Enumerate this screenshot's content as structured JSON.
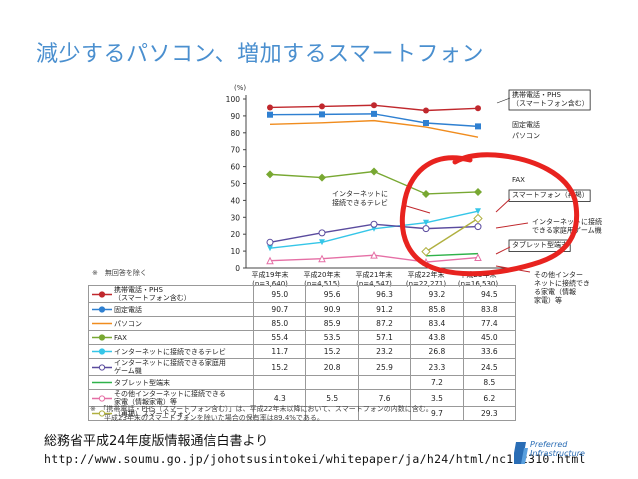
{
  "slide": {
    "title": "減少するパソコン、増加するスマートフォン",
    "source_text": "総務省平成24年度版情報通信白書より",
    "url": "http://www.soumu.go.jp/johotsusintokei/whitepaper/ja/h24/html/nc122310.html",
    "logo_text_1": "Preferred",
    "logo_text_2": "Infrastructure",
    "brand_color": "#4a8fcf",
    "annotation_color": "#e8231f"
  },
  "chart_data": {
    "type": "line",
    "unit_label": "(%)",
    "ylim": [
      0,
      100
    ],
    "yticks": [
      0,
      10,
      20,
      30,
      40,
      50,
      60,
      70,
      80,
      90,
      100
    ],
    "categories": [
      "平成19年末",
      "平成20年末",
      "平成21年末",
      "平成22年末",
      "平成23年末"
    ],
    "category_n": [
      "(n=3,640)",
      "(n=4,515)",
      "(n=4,547)",
      "(n=22,271)",
      "(n=16,530)"
    ],
    "note_left": "※　無回答を除く",
    "series": [
      {
        "name": "携帯電話・PHS（スマートフォン含む）",
        "label_lines": [
          "携帯電話・PHS",
          "（スマートフォン含む）"
        ],
        "color": "#c0282d",
        "marker": "circle",
        "values": [
          95.0,
          95.6,
          96.3,
          93.2,
          94.5
        ]
      },
      {
        "name": "固定電話",
        "label_lines": [
          "固定電話"
        ],
        "color": "#2f80d1",
        "marker": "square",
        "values": [
          90.7,
          90.9,
          91.2,
          85.8,
          83.8
        ]
      },
      {
        "name": "パソコン",
        "label_lines": [
          "パソコン"
        ],
        "color": "#f08c1e",
        "marker": "none",
        "values": [
          85.0,
          85.9,
          87.2,
          83.4,
          77.4
        ]
      },
      {
        "name": "FAX",
        "label_lines": [
          "FAX"
        ],
        "color": "#78a832",
        "marker": "diamond",
        "values": [
          55.4,
          53.5,
          57.1,
          43.8,
          45.0
        ]
      },
      {
        "name": "インターネットに接続できるテレビ",
        "label_lines": [
          "インターネットに接続できるテレビ"
        ],
        "color": "#35c6e8",
        "marker": "triangle-down",
        "values": [
          11.7,
          15.2,
          23.2,
          26.8,
          33.6
        ]
      },
      {
        "name": "インターネットに接続できる家庭用ゲーム機",
        "label_lines": [
          "インターネットに接続できる家庭用",
          "ゲーム機"
        ],
        "color": "#5a4b9e",
        "marker": "circle-open",
        "values": [
          15.2,
          20.8,
          25.9,
          23.3,
          24.5
        ]
      },
      {
        "name": "タブレット型端末",
        "label_lines": [
          "タブレット型端末"
        ],
        "color": "#2fb24a",
        "marker": "none",
        "values": [
          null,
          null,
          null,
          7.2,
          8.5
        ]
      },
      {
        "name": "その他インターネットに接続できる家電（情報家電）等",
        "label_lines": [
          "その他インターネットに接続できる",
          "家電（情報家電）等"
        ],
        "color": "#e56fa5",
        "marker": "triangle-open",
        "values": [
          4.3,
          5.5,
          7.6,
          3.5,
          6.2
        ]
      },
      {
        "name": "（再掲）スマートフォン",
        "label_lines": [
          "（再掲）スマートフォン"
        ],
        "color": "#b0b040",
        "marker": "diamond-open",
        "values": [
          null,
          null,
          null,
          9.7,
          29.3
        ]
      }
    ],
    "table_values": [
      [
        "95.0",
        "95.6",
        "96.3",
        "93.2",
        "94.5"
      ],
      [
        "90.7",
        "90.9",
        "91.2",
        "85.8",
        "83.8"
      ],
      [
        "85.0",
        "85.9",
        "87.2",
        "83.4",
        "77.4"
      ],
      [
        "55.4",
        "53.5",
        "57.1",
        "43.8",
        "45.0"
      ],
      [
        "11.7",
        "15.2",
        "23.2",
        "26.8",
        "33.6"
      ],
      [
        "15.2",
        "20.8",
        "25.9",
        "23.3",
        "24.5"
      ],
      [
        "",
        "",
        "",
        "7.2",
        "8.5"
      ],
      [
        "4.3",
        "5.5",
        "7.6",
        "3.5",
        "6.2"
      ],
      [
        "",
        "",
        "",
        "9.7",
        "29.3"
      ]
    ],
    "right_labels": {
      "keitai": [
        "携帯電話・PHS",
        "（スマートフォン含む）"
      ],
      "kotei": [
        "固定電話"
      ],
      "pasokon": [
        "パソコン"
      ],
      "fax": [
        "FAX"
      ],
      "smartphone": [
        "スマートフォン（再掲）"
      ],
      "game": [
        "インターネットに接続",
        "できる家庭用ゲーム機"
      ],
      "tablet": [
        "タブレット型端末"
      ],
      "sonota": [
        "その他インター",
        "ネットに接続でき",
        "る家電（情報",
        "家電）等"
      ]
    },
    "inline_label_tv": [
      "インターネットに",
      "接続できるテレビ"
    ],
    "footnotes": [
      "※　「携帯電話・PHS（スマートフォン含む）」は、平成22年末以降において、スマートフォンの内数に含む。",
      "　　平成23年末のスマートフォンを除いた場合の保有率は89.4%である。"
    ]
  }
}
